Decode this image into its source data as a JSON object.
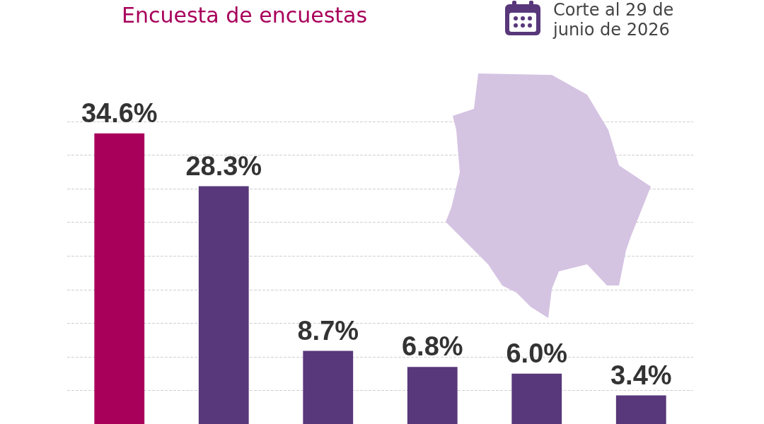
{
  "chart_data": {
    "type": "bar",
    "title": "Encuesta de encuestas",
    "annotations": [
      "Corte al 29 de\njunio de 2026"
    ],
    "categories": [
      null,
      null,
      null,
      null,
      null,
      null
    ],
    "values": [
      34.6,
      28.3,
      8.7,
      6.8,
      6.0,
      3.4
    ],
    "colors": [
      "#a8005a",
      "#58377a",
      "#58377a",
      "#58377a",
      "#58377a",
      "#58377a"
    ],
    "value_labels": [
      "34.6%",
      "28.3%",
      "8.7%",
      "6.8%",
      "6.0%",
      "3.4%"
    ],
    "ylim": [
      0,
      36
    ],
    "yticks": [
      {
        "value": 4,
        "label": null
      },
      {
        "value": 8,
        "label": null
      },
      {
        "value": 12,
        "label": null
      },
      {
        "value": 16,
        "label": null
      },
      {
        "value": 20,
        "label": null
      },
      {
        "value": 24,
        "label": null
      },
      {
        "value": 28,
        "label": null
      },
      {
        "value": 32,
        "label": null
      },
      {
        "value": 36,
        "label": null
      }
    ],
    "grid": "y"
  }
}
